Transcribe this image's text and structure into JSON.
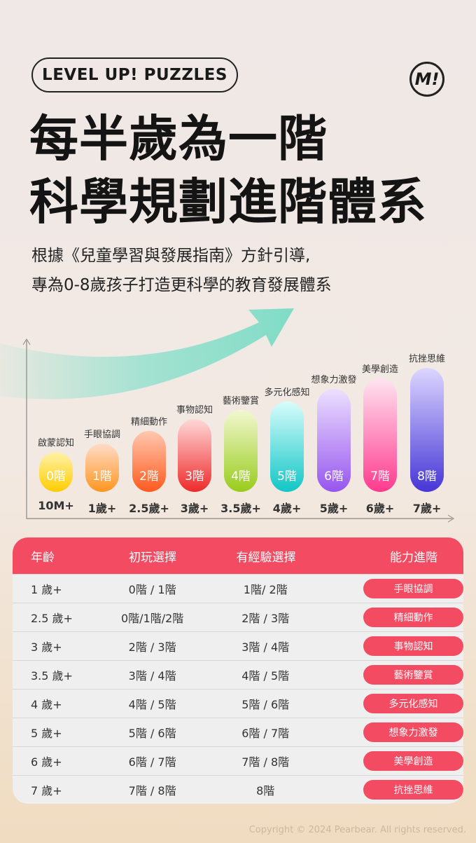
{
  "header": {
    "badge": "LEVEL UP! PUZZLES",
    "logo": "M!",
    "title_line1": "每半歲為一階",
    "title_line2": "科學規劃進階體系",
    "subtitle_line1": "根據《兒童學習與發展指南》方針引導,",
    "subtitle_line2": "專為0-8歲孩子打造更科學的教育發展體系"
  },
  "levels": [
    {
      "level": "0階",
      "skill": "啟蒙認知",
      "age": "10M+",
      "from": "#fff2a8",
      "to": "#ffcc00"
    },
    {
      "level": "1階",
      "skill": "手眼協調",
      "age": "1歲+",
      "from": "#ffdcc8",
      "to": "#ff9620"
    },
    {
      "level": "2階",
      "skill": "精細動作",
      "age": "2.5歲+",
      "from": "#ffc8b0",
      "to": "#ff5a1e"
    },
    {
      "level": "3階",
      "skill": "事物認知",
      "age": "3歲+",
      "from": "#ffd8d8",
      "to": "#ee2a2a"
    },
    {
      "level": "4階",
      "skill": "藝術鑒賞",
      "age": "3.5歲+",
      "from": "#f2f8d0",
      "to": "#98cc1c"
    },
    {
      "level": "5階",
      "skill": "多元化感知",
      "age": "4歲+",
      "from": "#d8fcfc",
      "to": "#12c6c6"
    },
    {
      "level": "6階",
      "skill": "想象力激發",
      "age": "5歲+",
      "from": "#ece0ff",
      "to": "#9656ee"
    },
    {
      "level": "7階",
      "skill": "美學創造",
      "age": "6歲+",
      "from": "#ffe4f0",
      "to": "#ff3a8e"
    },
    {
      "level": "8階",
      "skill": "抗挫思維",
      "age": "7歲+",
      "from": "#dcd6ff",
      "to": "#4636d6"
    }
  ],
  "table": {
    "headers": [
      "年齡",
      "初玩選擇",
      "有經驗選擇",
      "能力進階"
    ],
    "rows": [
      [
        "1 歲+",
        "0階  / 1階",
        "1階/ 2階",
        "手眼協調"
      ],
      [
        "2.5 歲+",
        "0階/1階/2階",
        "2階 / 3階",
        "精細動作"
      ],
      [
        "3 歲+",
        "2階 / 3階",
        "3階 / 4階",
        "事物認知"
      ],
      [
        "3.5 歲+",
        "3階 / 4階",
        "4階 / 5階",
        "藝術鑒賞"
      ],
      [
        "4 歲+",
        "4階 / 5階",
        "5階 / 6階",
        "多元化感知"
      ],
      [
        "5 歲+",
        "5階 / 6階",
        "6階 / 7階",
        "想象力激發"
      ],
      [
        "6 歲+",
        "6階 / 7階",
        "7階 / 8階",
        "美學創造"
      ],
      [
        "7 歲+",
        "7階 / 8階",
        "8階",
        "抗挫思維"
      ]
    ]
  },
  "footer": {
    "copyright": "Copyright © 2024 Pearbear. All rights reserved."
  },
  "colors": {
    "accent": "#f24b62",
    "arrow": "#8fe0cc"
  }
}
